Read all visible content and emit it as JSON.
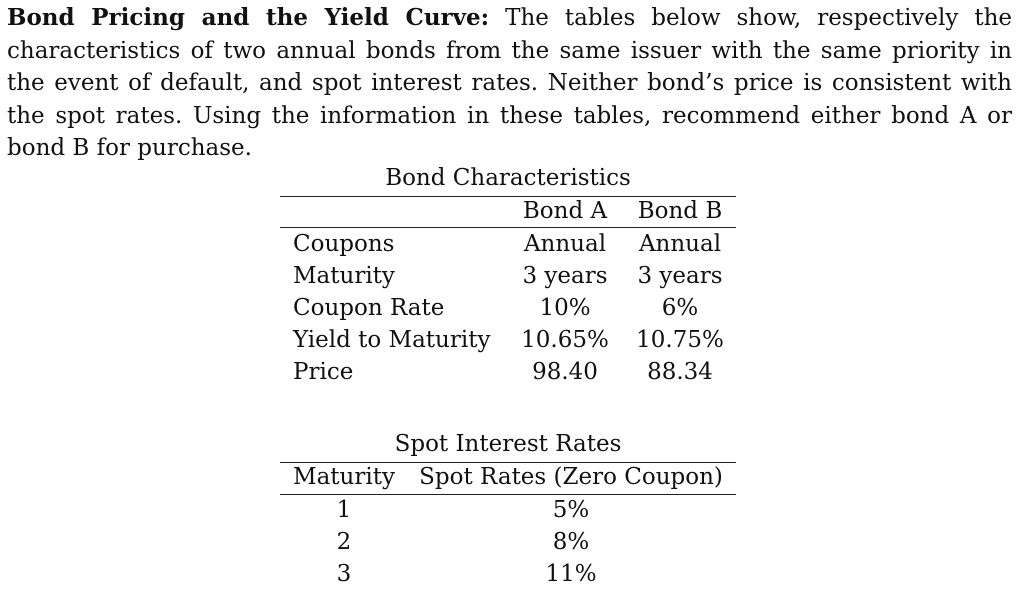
{
  "problem": {
    "heading": "Bond Pricing and the Yield Curve:",
    "body": "The tables below show, respectively the characteristics of two annual bonds from the same issuer with the same priority in the event of default, and spot interest rates. Neither bond’s price is consistent with the spot rates. Using the information in these tables, recommend either bond A or bond B for purchase."
  },
  "bond_table": {
    "caption": "Bond Characteristics",
    "headers": [
      "",
      "Bond A",
      "Bond B"
    ],
    "rows": [
      {
        "label": "Coupons",
        "a": "Annual",
        "b": "Annual"
      },
      {
        "label": "Maturity",
        "a": "3 years",
        "b": "3 years"
      },
      {
        "label": "Coupon Rate",
        "a": "10%",
        "b": "6%"
      },
      {
        "label": "Yield to Maturity",
        "a": "10.65%",
        "b": "10.75%"
      },
      {
        "label": "Price",
        "a": "98.40",
        "b": "88.34"
      }
    ]
  },
  "spot_table": {
    "caption": "Spot Interest Rates",
    "headers": [
      "Maturity",
      "Spot Rates (Zero Coupon)"
    ],
    "rows": [
      {
        "maturity": "1",
        "rate": "5%"
      },
      {
        "maturity": "2",
        "rate": "8%"
      },
      {
        "maturity": "3",
        "rate": "11%"
      }
    ]
  }
}
